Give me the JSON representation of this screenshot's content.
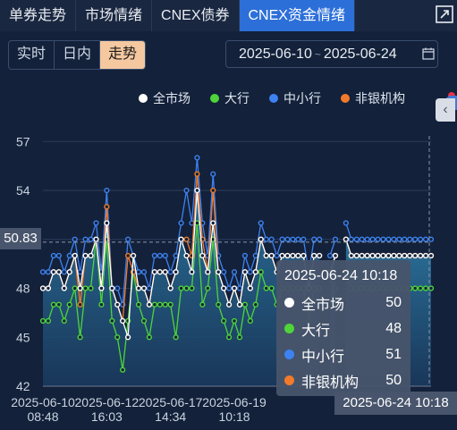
{
  "tabs": [
    {
      "label": "单券走势",
      "active": false
    },
    {
      "label": "市场情绪",
      "active": false
    },
    {
      "label": "CNEX债券",
      "active": false
    },
    {
      "label": "CNEX资金情绪",
      "active": true
    }
  ],
  "mode_segments": [
    "实时",
    "日内",
    "走势"
  ],
  "mode_selected": "走势",
  "date_range": {
    "start": "2025-06-10",
    "separator": "~",
    "end": "2025-06-24"
  },
  "colors": {
    "all": "#ffffff",
    "big": "#4fd43a",
    "small": "#3d82f0",
    "nonbank": "#f27a2a",
    "accent": "#2c6fd8"
  },
  "legend": [
    {
      "name": "全市场",
      "color": "#ffffff"
    },
    {
      "name": "大行",
      "color": "#4fd43a"
    },
    {
      "name": "中小行",
      "color": "#3d82f0"
    },
    {
      "name": "非银机构",
      "color": "#f27a2a"
    }
  ],
  "crosshair": {
    "y_value": "50.83",
    "x_value": "2025-06-24 10:18"
  },
  "tooltip": {
    "title": "2025-06-24 10:18",
    "rows": [
      {
        "name": "全市场",
        "value": "50",
        "color": "#ffffff"
      },
      {
        "name": "大行",
        "value": "48",
        "color": "#4fd43a"
      },
      {
        "name": "中小行",
        "value": "51",
        "color": "#3d82f0"
      },
      {
        "name": "非银机构",
        "value": "50",
        "color": "#f27a2a"
      }
    ]
  },
  "chart_data": {
    "type": "line",
    "y_ticks": [
      42,
      45,
      48,
      51,
      54,
      57
    ],
    "ylim": [
      42,
      58
    ],
    "x_tick_labels": [
      {
        "line1": "2025-06-10",
        "line2": "08:48",
        "index": 0
      },
      {
        "line1": "2025-06-12",
        "line2": "16:03",
        "index": 12
      },
      {
        "line1": "2025-06-17",
        "line2": "14:34",
        "index": 24
      },
      {
        "line1": "2025-06-19",
        "line2": "10:18",
        "index": 36
      }
    ],
    "grid": true,
    "legend_position": "top-right",
    "series": [
      {
        "name": "全市场",
        "color": "#ffffff",
        "values": [
          48,
          48,
          49,
          49,
          48,
          49,
          50,
          48,
          50,
          50,
          51,
          48,
          52,
          48,
          47,
          46,
          45,
          50,
          48,
          48,
          47,
          49,
          49,
          49,
          48,
          49,
          51,
          50,
          49,
          54,
          50,
          49,
          52,
          49,
          48,
          47,
          48,
          47,
          49,
          48,
          49,
          51,
          50,
          50,
          49,
          50,
          50,
          50,
          50,
          50,
          48,
          50,
          50,
          null,
          49,
          50,
          null,
          51,
          50,
          50,
          50,
          50,
          50,
          50,
          50,
          50,
          50,
          50,
          50,
          50,
          50,
          50,
          50,
          50
        ]
      },
      {
        "name": "大行",
        "color": "#4fd43a",
        "values": [
          46,
          46,
          47,
          47,
          46,
          47,
          48,
          45,
          48,
          48,
          51,
          47,
          51,
          46,
          45,
          43,
          46,
          49,
          47,
          46,
          45,
          47,
          47,
          47,
          47,
          45,
          48,
          48,
          48,
          52,
          47,
          48,
          51,
          47,
          46,
          45,
          46,
          45,
          47,
          46,
          47,
          49,
          48,
          48,
          47,
          48,
          48,
          48,
          48,
          48,
          46,
          48,
          48,
          null,
          47,
          48,
          null,
          49,
          48,
          48,
          48,
          48,
          48,
          48,
          48,
          48,
          48,
          48,
          48,
          48,
          48,
          48,
          48,
          48
        ]
      },
      {
        "name": "中小行",
        "color": "#3d82f0",
        "values": [
          49,
          49,
          50,
          50,
          49,
          50,
          51,
          49,
          51,
          51,
          52,
          49,
          54,
          48,
          48,
          47,
          51,
          50,
          49,
          49,
          48,
          50,
          50,
          50,
          49,
          50,
          52,
          54,
          52,
          56,
          52,
          50,
          55,
          50,
          49,
          48,
          49,
          48,
          50,
          49,
          50,
          52,
          51,
          51,
          50,
          51,
          51,
          51,
          51,
          51,
          49,
          51,
          51,
          null,
          50,
          51,
          null,
          52,
          51,
          51,
          51,
          51,
          51,
          51,
          51,
          51,
          51,
          51,
          51,
          51,
          51,
          51,
          51,
          51
        ]
      },
      {
        "name": "非银机构",
        "color": "#f27a2a",
        "values": [
          48,
          48,
          49,
          49,
          48,
          49,
          50,
          47,
          50,
          50,
          51,
          48,
          53,
          48,
          47,
          46,
          50,
          49,
          48,
          48,
          47,
          49,
          49,
          49,
          48,
          49,
          51,
          51,
          50,
          55,
          51,
          49,
          54,
          49,
          48,
          47,
          48,
          47,
          49,
          48,
          49,
          51,
          50,
          50,
          49,
          50,
          50,
          50,
          50,
          50,
          48,
          50,
          50,
          null,
          49,
          50,
          null,
          51,
          50,
          50,
          50,
          50,
          50,
          50,
          50,
          50,
          50,
          50,
          50,
          50,
          50,
          50,
          50,
          50
        ]
      }
    ]
  }
}
